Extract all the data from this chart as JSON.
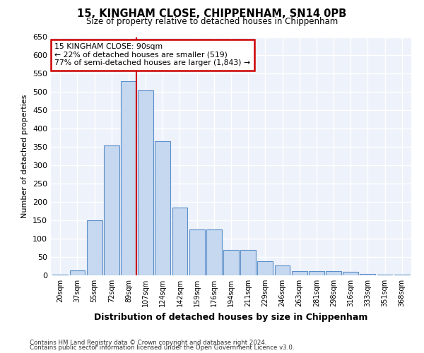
{
  "title": "15, KINGHAM CLOSE, CHIPPENHAM, SN14 0PB",
  "subtitle": "Size of property relative to detached houses in Chippenham",
  "xlabel": "Distribution of detached houses by size in Chippenham",
  "ylabel": "Number of detached properties",
  "categories": [
    "20sqm",
    "37sqm",
    "55sqm",
    "72sqm",
    "89sqm",
    "107sqm",
    "124sqm",
    "142sqm",
    "159sqm",
    "176sqm",
    "194sqm",
    "211sqm",
    "229sqm",
    "246sqm",
    "263sqm",
    "281sqm",
    "298sqm",
    "316sqm",
    "333sqm",
    "351sqm",
    "368sqm"
  ],
  "values": [
    2,
    14,
    150,
    355,
    530,
    505,
    365,
    185,
    125,
    125,
    70,
    70,
    38,
    27,
    12,
    12,
    12,
    10,
    3,
    2,
    1
  ],
  "bar_color": "#c5d8f0",
  "bar_edge_color": "#5b8fc9",
  "highlight_bar_index": 4,
  "highlight_line_color": "#cc0000",
  "annotation_line1": "15 KINGHAM CLOSE: 90sqm",
  "annotation_line2": "← 22% of detached houses are smaller (519)",
  "annotation_line3": "77% of semi-detached houses are larger (1,843) →",
  "annotation_box_color": "#cc0000",
  "ylim": [
    0,
    650
  ],
  "yticks": [
    0,
    50,
    100,
    150,
    200,
    250,
    300,
    350,
    400,
    450,
    500,
    550,
    600,
    650
  ],
  "background_color": "#eef2fb",
  "grid_color": "#ffffff",
  "footnote1": "Contains HM Land Registry data © Crown copyright and database right 2024.",
  "footnote2": "Contains public sector information licensed under the Open Government Licence v3.0."
}
